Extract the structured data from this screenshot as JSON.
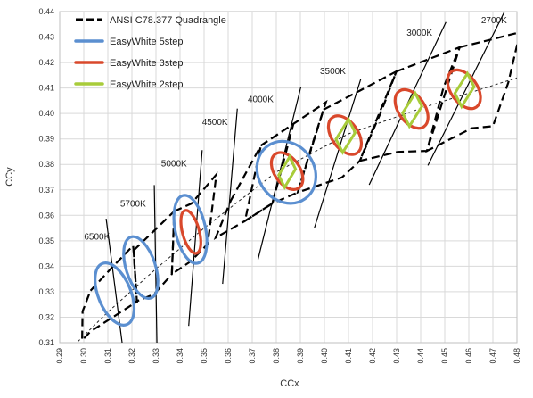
{
  "chart_data": {
    "type": "line",
    "title": "",
    "xlabel": "CCx",
    "ylabel": "CCy",
    "xlim": [
      0.29,
      0.48
    ],
    "ylim": [
      0.31,
      0.44
    ],
    "x_ticks": [
      "0.29",
      "0.30",
      "0.31",
      "0.32",
      "0.33",
      "0.34",
      "0.35",
      "0.36",
      "0.37",
      "0.38",
      "0.39",
      "0.40",
      "0.41",
      "0.42",
      "0.43",
      "0.44",
      "0.45",
      "0.46",
      "0.47",
      "0.48"
    ],
    "y_ticks": [
      "0.31",
      "0.32",
      "0.33",
      "0.34",
      "0.35",
      "0.36",
      "0.37",
      "0.38",
      "0.39",
      "0.40",
      "0.41",
      "0.42",
      "0.43",
      "0.44"
    ],
    "grid": true,
    "legend_position": "top-left",
    "legend": [
      {
        "label": "ANSI C78.377 Quadrangle",
        "color": "#000000",
        "style": "dashed"
      },
      {
        "label": "EasyWhite 5step",
        "color": "#5b8fd0",
        "style": "ellipse"
      },
      {
        "label": "EasyWhite 3step",
        "color": "#d9482b",
        "style": "ellipse"
      },
      {
        "label": "EasyWhite 2step",
        "color": "#a8cc3a",
        "style": "diamond"
      }
    ],
    "planckian_locus": [
      [
        0.296,
        0.309
      ],
      [
        0.31,
        0.322
      ],
      [
        0.33,
        0.339
      ],
      [
        0.35,
        0.355
      ],
      [
        0.38,
        0.377
      ],
      [
        0.41,
        0.392
      ],
      [
        0.44,
        0.402
      ],
      [
        0.46,
        0.408
      ],
      [
        0.48,
        0.414
      ]
    ],
    "quadrangles": [
      {
        "cct": "6500K",
        "label_pos": [
          0.3055,
          0.3505
        ],
        "points": [
          [
            0.3028,
            0.3304
          ],
          [
            0.3115,
            0.3393
          ],
          [
            0.3205,
            0.3481
          ],
          [
            0.3207,
            0.3462
          ],
          [
            0.3221,
            0.3261
          ],
          [
            0.3028,
            0.3144
          ],
          [
            0.2993,
            0.3109
          ],
          [
            0.2995,
            0.3223
          ]
        ]
      },
      {
        "cct": "5700K",
        "label_pos": [
          0.3205,
          0.3635
        ],
        "points": [
          [
            0.3207,
            0.3462
          ],
          [
            0.3292,
            0.3539
          ],
          [
            0.3376,
            0.3616
          ],
          [
            0.3366,
            0.3369
          ],
          [
            0.3292,
            0.329
          ],
          [
            0.3215,
            0.3261
          ],
          [
            0.3221,
            0.3261
          ]
        ]
      },
      {
        "cct": "5000K",
        "label_pos": [
          0.3375,
          0.3792
        ],
        "points": [
          [
            0.3376,
            0.3616
          ],
          [
            0.3447,
            0.3646
          ],
          [
            0.3551,
            0.376
          ],
          [
            0.3515,
            0.3487
          ],
          [
            0.3444,
            0.3419
          ],
          [
            0.3366,
            0.3369
          ]
        ]
      },
      {
        "cct": "4500K",
        "label_pos": [
          0.3545,
          0.3955
        ],
        "points": [
          [
            0.3611,
            0.3658
          ],
          [
            0.3736,
            0.3874
          ],
          [
            0.3871,
            0.3959
          ],
          [
            0.3828,
            0.3803
          ],
          [
            0.3784,
            0.3647
          ],
          [
            0.367,
            0.3578
          ],
          [
            0.3548,
            0.3512
          ]
        ]
      },
      {
        "cct": "4000K",
        "label_pos": [
          0.3735,
          0.4045
        ],
        "points": [
          [
            0.3736,
            0.3874
          ],
          [
            0.3871,
            0.3959
          ],
          [
            0.4006,
            0.4044
          ],
          [
            0.395,
            0.388
          ],
          [
            0.3889,
            0.369
          ],
          [
            0.3784,
            0.3647
          ],
          [
            0.367,
            0.3578
          ]
        ]
      },
      {
        "cct": "3500K",
        "label_pos": [
          0.4035,
          0.4155
        ],
        "points": [
          [
            0.3996,
            0.4015
          ],
          [
            0.4148,
            0.409
          ],
          [
            0.4299,
            0.4165
          ],
          [
            0.4237,
            0.401
          ],
          [
            0.4147,
            0.3814
          ],
          [
            0.4073,
            0.3749
          ],
          [
            0.3889,
            0.369
          ]
        ]
      },
      {
        "cct": "3000K",
        "label_pos": [
          0.4395,
          0.4305
        ],
        "points": [
          [
            0.4299,
            0.4165
          ],
          [
            0.443,
            0.4212
          ],
          [
            0.4562,
            0.426
          ],
          [
            0.4495,
            0.4103
          ],
          [
            0.4426,
            0.3853
          ],
          [
            0.4305,
            0.3849
          ],
          [
            0.4147,
            0.3814
          ]
        ]
      },
      {
        "cct": "2700K",
        "label_pos": [
          0.4705,
          0.4355
        ],
        "points": [
          [
            0.4562,
            0.426
          ],
          [
            0.4687,
            0.4289
          ],
          [
            0.4813,
            0.4319
          ],
          [
            0.4764,
            0.4121
          ],
          [
            0.47,
            0.395
          ],
          [
            0.4612,
            0.3942
          ],
          [
            0.4426,
            0.3853
          ]
        ]
      }
    ],
    "isotherms": [
      {
        "cct": "6500K",
        "points": [
          [
            0.3093,
            0.3587
          ],
          [
            0.3162,
            0.308
          ]
        ]
      },
      {
        "cct": "5700K",
        "points": [
          [
            0.3293,
            0.3719
          ],
          [
            0.3304,
            0.3095
          ]
        ]
      },
      {
        "cct": "5000K",
        "points": [
          [
            0.3492,
            0.3856
          ],
          [
            0.3436,
            0.3166
          ]
        ]
      },
      {
        "cct": "4500K",
        "points": [
          [
            0.3638,
            0.4019
          ],
          [
            0.3577,
            0.3331
          ]
        ]
      },
      {
        "cct": "4000K",
        "points": [
          [
            0.3902,
            0.4104
          ],
          [
            0.3724,
            0.3427
          ]
        ]
      },
      {
        "cct": "3500K",
        "points": [
          [
            0.4151,
            0.4135
          ],
          [
            0.3958,
            0.355
          ]
        ]
      },
      {
        "cct": "3000K",
        "points": [
          [
            0.4505,
            0.4359
          ],
          [
            0.4186,
            0.372
          ]
        ]
      },
      {
        "cct": "2700K",
        "points": [
          [
            0.475,
            0.4403
          ],
          [
            0.443,
            0.3796
          ]
        ]
      }
    ],
    "series": [
      {
        "name": "EasyWhite 5step",
        "ellipses": [
          {
            "cx": 0.3128,
            "cy": 0.3291,
            "rx": 0.0068,
            "ry": 0.0129,
            "rot": -22
          },
          {
            "cx": 0.3237,
            "cy": 0.3395,
            "rx": 0.0061,
            "ry": 0.0126,
            "rot": -18
          },
          {
            "cx": 0.3443,
            "cy": 0.3545,
            "rx": 0.0063,
            "ry": 0.0136,
            "rot": -12
          },
          {
            "cx": 0.3842,
            "cy": 0.3769,
            "rx": 0.0116,
            "ry": 0.0127,
            "rot": -35
          }
        ]
      },
      {
        "name": "EasyWhite 3step",
        "ellipses": [
          {
            "cx": 0.3445,
            "cy": 0.3535,
            "rx": 0.0035,
            "ry": 0.0087,
            "rot": -15
          },
          {
            "cx": 0.3845,
            "cy": 0.3774,
            "rx": 0.0053,
            "ry": 0.0081,
            "rot": -35
          },
          {
            "cx": 0.4085,
            "cy": 0.3915,
            "rx": 0.0055,
            "ry": 0.0085,
            "rot": -35
          },
          {
            "cx": 0.4362,
            "cy": 0.4018,
            "rx": 0.0055,
            "ry": 0.0085,
            "rot": -35
          },
          {
            "cx": 0.458,
            "cy": 0.4095,
            "rx": 0.0055,
            "ry": 0.0085,
            "rot": -35
          }
        ]
      },
      {
        "name": "EasyWhite 2step",
        "diamonds": [
          {
            "cx": 0.3845,
            "cy": 0.377,
            "dx": 0.0035,
            "dy": 0.006
          },
          {
            "cx": 0.4088,
            "cy": 0.3912,
            "dx": 0.004,
            "dy": 0.0065
          },
          {
            "cx": 0.4365,
            "cy": 0.4015,
            "dx": 0.004,
            "dy": 0.0065
          },
          {
            "cx": 0.4582,
            "cy": 0.4092,
            "dx": 0.004,
            "dy": 0.0065
          }
        ]
      }
    ]
  }
}
